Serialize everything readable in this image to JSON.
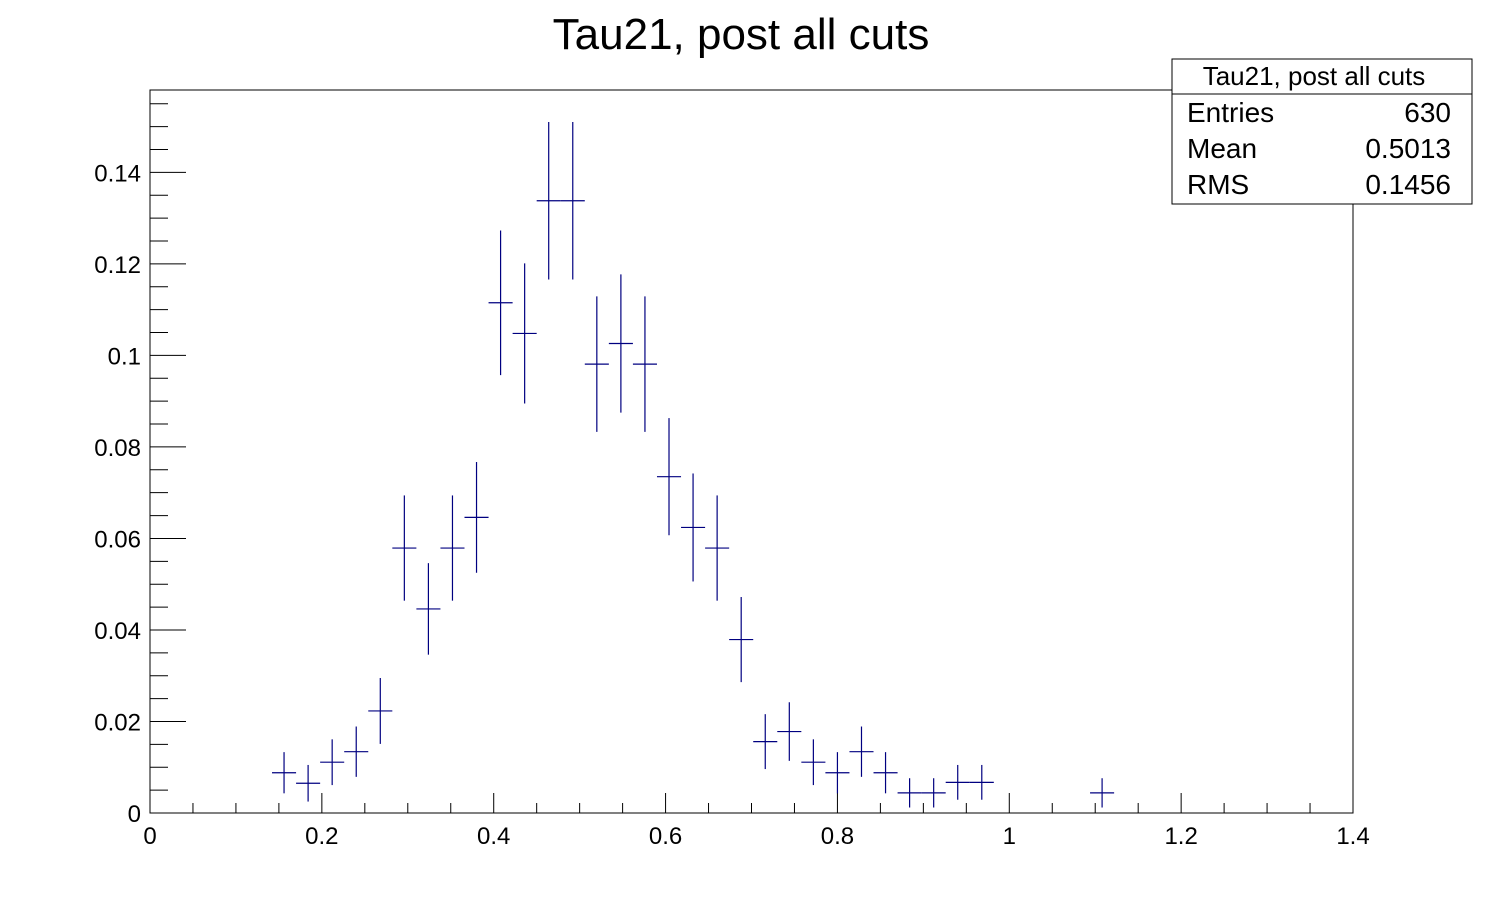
{
  "chart_data": {
    "type": "scatter",
    "title": "Tau21, post all cuts",
    "xlabel": "",
    "ylabel": "",
    "xlim": [
      0,
      1.4
    ],
    "ylim": [
      0,
      0.158
    ],
    "grid": false,
    "x_ticks": [
      {
        "value": 0,
        "label": "0"
      },
      {
        "value": 0.2,
        "label": "0.2"
      },
      {
        "value": 0.4,
        "label": "0.4"
      },
      {
        "value": 0.6,
        "label": "0.6"
      },
      {
        "value": 0.8,
        "label": "0.8"
      },
      {
        "value": 1.0,
        "label": "1"
      },
      {
        "value": 1.2,
        "label": "1.2"
      },
      {
        "value": 1.4,
        "label": "1.4"
      }
    ],
    "y_ticks": [
      {
        "value": 0,
        "label": "0"
      },
      {
        "value": 0.02,
        "label": "0.02"
      },
      {
        "value": 0.04,
        "label": "0.04"
      },
      {
        "value": 0.06,
        "label": "0.06"
      },
      {
        "value": 0.08,
        "label": "0.08"
      },
      {
        "value": 0.1,
        "label": "0.1"
      },
      {
        "value": 0.12,
        "label": "0.12"
      },
      {
        "value": 0.14,
        "label": "0.14"
      }
    ],
    "marker_color": "#000080",
    "bin_width": 0.028,
    "series": [
      {
        "points": [
          {
            "x": 0.156,
            "y": 0.0088,
            "err": 0.0045
          },
          {
            "x": 0.184,
            "y": 0.0065,
            "err": 0.004
          },
          {
            "x": 0.212,
            "y": 0.0111,
            "err": 0.005
          },
          {
            "x": 0.24,
            "y": 0.0134,
            "err": 0.0055
          },
          {
            "x": 0.268,
            "y": 0.0223,
            "err": 0.0072
          },
          {
            "x": 0.296,
            "y": 0.0579,
            "err": 0.0115
          },
          {
            "x": 0.324,
            "y": 0.0446,
            "err": 0.01
          },
          {
            "x": 0.352,
            "y": 0.0579,
            "err": 0.0115
          },
          {
            "x": 0.38,
            "y": 0.0646,
            "err": 0.0121
          },
          {
            "x": 0.408,
            "y": 0.1115,
            "err": 0.0158
          },
          {
            "x": 0.436,
            "y": 0.1048,
            "err": 0.0153
          },
          {
            "x": 0.464,
            "y": 0.1338,
            "err": 0.0172
          },
          {
            "x": 0.492,
            "y": 0.1338,
            "err": 0.0172
          },
          {
            "x": 0.52,
            "y": 0.0981,
            "err": 0.0148
          },
          {
            "x": 0.548,
            "y": 0.1026,
            "err": 0.0151
          },
          {
            "x": 0.576,
            "y": 0.0981,
            "err": 0.0148
          },
          {
            "x": 0.604,
            "y": 0.0735,
            "err": 0.0128
          },
          {
            "x": 0.632,
            "y": 0.0624,
            "err": 0.0118
          },
          {
            "x": 0.66,
            "y": 0.0579,
            "err": 0.0115
          },
          {
            "x": 0.688,
            "y": 0.0379,
            "err": 0.0093
          },
          {
            "x": 0.716,
            "y": 0.0156,
            "err": 0.006
          },
          {
            "x": 0.744,
            "y": 0.0178,
            "err": 0.0064
          },
          {
            "x": 0.772,
            "y": 0.0111,
            "err": 0.005
          },
          {
            "x": 0.8,
            "y": 0.0088,
            "err": 0.0045
          },
          {
            "x": 0.828,
            "y": 0.0134,
            "err": 0.0055
          },
          {
            "x": 0.856,
            "y": 0.0088,
            "err": 0.0045
          },
          {
            "x": 0.884,
            "y": 0.0044,
            "err": 0.0032
          },
          {
            "x": 0.912,
            "y": 0.0044,
            "err": 0.0032
          },
          {
            "x": 0.94,
            "y": 0.0067,
            "err": 0.0038
          },
          {
            "x": 0.968,
            "y": 0.0067,
            "err": 0.0038
          },
          {
            "x": 1.108,
            "y": 0.0044,
            "err": 0.0032
          }
        ]
      }
    ],
    "stats_box": {
      "title": "Tau21, post all cuts",
      "rows": [
        {
          "label": "Entries",
          "value": "630"
        },
        {
          "label": "Mean",
          "value": "0.5013"
        },
        {
          "label": "RMS",
          "value": "0.1456"
        }
      ],
      "placement": "top-right"
    }
  }
}
